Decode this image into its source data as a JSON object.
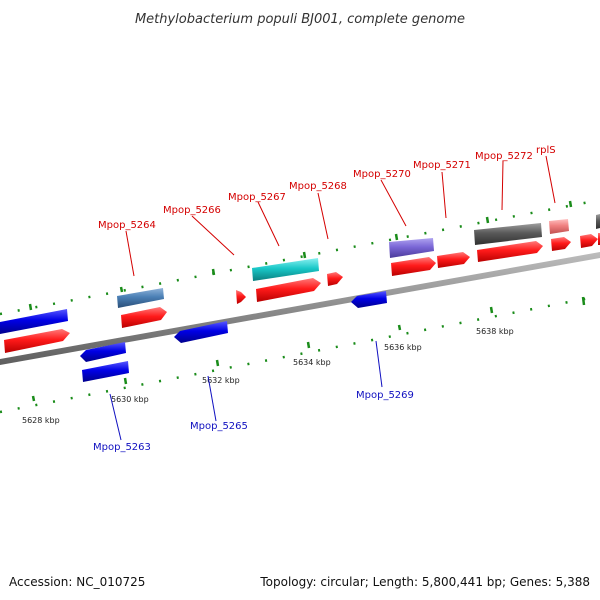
{
  "title": "Methylobacterium populi BJ001, complete genome",
  "footer": {
    "accession": "Accession: NC_010725",
    "summary": "Topology: circular; Length: 5,800,441 bp; Genes: 5,388"
  },
  "scale_labels": [
    "5628 kbp",
    "5630 kbp",
    "5632 kbp",
    "5634 kbp",
    "5636 kbp",
    "5638 kbp"
  ],
  "gene_labels_top": [
    "Mpop_5264",
    "Mpop_5266",
    "Mpop_5267",
    "Mpop_5268",
    "Mpop_5270",
    "Mpop_5271",
    "Mpop_5272",
    "rplS"
  ],
  "gene_labels_bottom": [
    "Mpop_5263",
    "Mpop_5265",
    "Mpop_5269"
  ],
  "colors": {
    "cds": "#ff1a1a",
    "gene_forward": "#0000e6",
    "steelblue_gene": "#4a7fb5",
    "cyan_gene": "#1ac8c8",
    "purple_gene": "#7a66d6",
    "gray_gene": "#5a5a5a",
    "rrna_pink": "#f08080",
    "backbone": "#8c8c8c",
    "tick": "#1a8c1a",
    "label_top": "#d40000",
    "label_bottom": "#1010c0"
  }
}
